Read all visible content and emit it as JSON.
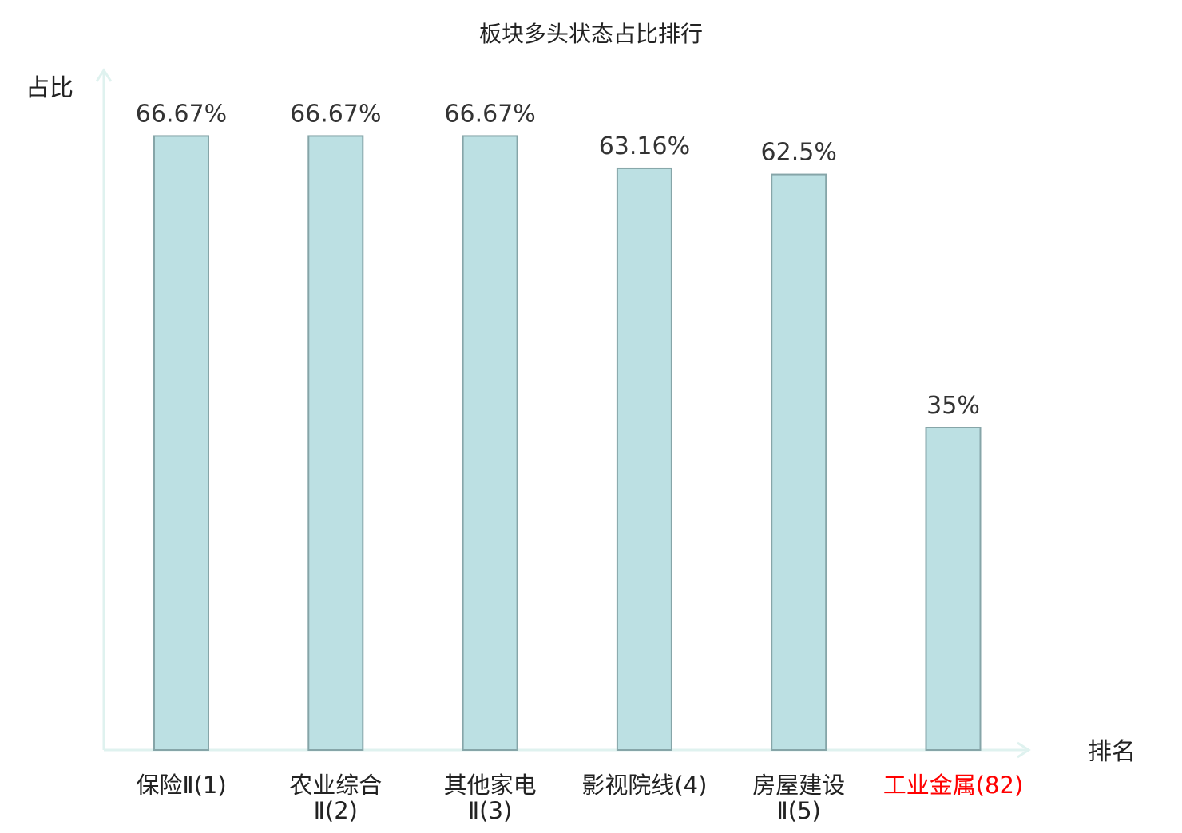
{
  "chart_data": {
    "type": "bar",
    "title": "板块多头状态占比排行",
    "ylabel": "占比",
    "xlabel": "排名",
    "ylim": [
      0,
      70
    ],
    "grid": false,
    "legend": "none",
    "colors": {
      "bar_fill": "#bce0e3",
      "bar_stroke": "#86a5a8",
      "axis": "#dff2ef",
      "text": "#333333",
      "highlight": "#ff0000"
    },
    "categories": [
      {
        "lines": [
          "保险Ⅱ(1)"
        ],
        "highlight": false
      },
      {
        "lines": [
          "农业综合",
          "Ⅱ(2)"
        ],
        "highlight": false
      },
      {
        "lines": [
          "其他家电",
          "Ⅱ(3)"
        ],
        "highlight": false
      },
      {
        "lines": [
          "影视院线(4)"
        ],
        "highlight": false
      },
      {
        "lines": [
          "房屋建设",
          "Ⅱ(5)"
        ],
        "highlight": false
      },
      {
        "lines": [
          "工业金属(82)"
        ],
        "highlight": true
      }
    ],
    "values": [
      66.67,
      66.67,
      66.67,
      63.16,
      62.5,
      35
    ],
    "value_labels": [
      "66.67%",
      "66.67%",
      "66.67%",
      "63.16%",
      "62.5%",
      "35%"
    ]
  }
}
